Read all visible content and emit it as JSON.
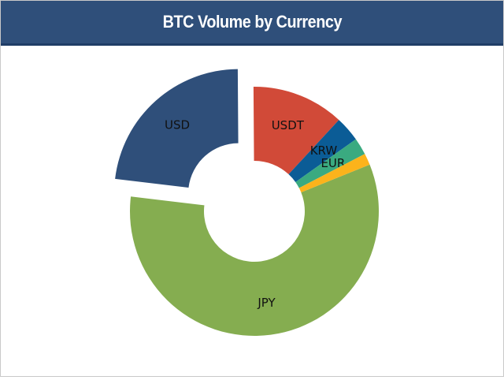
{
  "panel": {
    "title": "BTC Volume by Currency"
  },
  "chart_data": {
    "type": "pie",
    "title": "BTC Volume by Currency",
    "donut": true,
    "exploded": "USD",
    "slices": [
      {
        "label": "JPY",
        "value": 58.0,
        "color": "#85ad50",
        "show_label": true
      },
      {
        "label": "USD",
        "value": 23.0,
        "color": "#2f4f7a",
        "show_label": true
      },
      {
        "label": "USDT",
        "value": 12.0,
        "color": "#d14a38",
        "show_label": true
      },
      {
        "label": "KRW",
        "value": 3.3,
        "color": "#0b5c96",
        "show_label": true
      },
      {
        "label": "EUR",
        "value": 2.2,
        "color": "#3aaa80",
        "show_label": true
      },
      {
        "label": "",
        "value": 1.5,
        "color": "#fcb31b",
        "show_label": false
      }
    ]
  }
}
